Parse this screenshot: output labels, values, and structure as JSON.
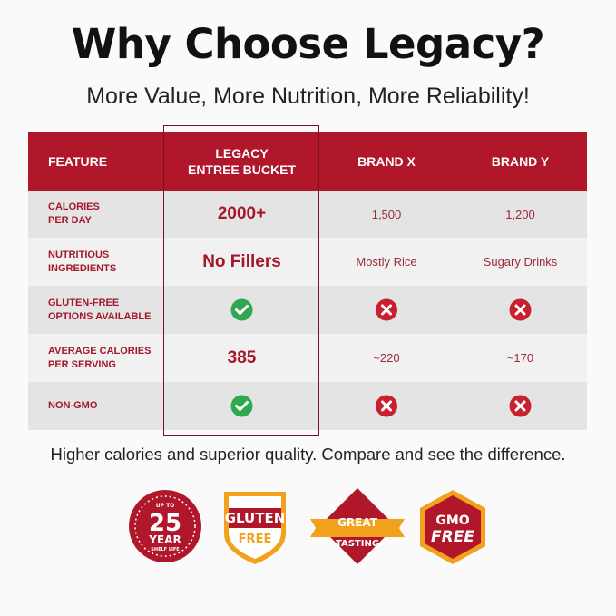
{
  "header": {
    "title": "Why Choose Legacy?",
    "subtitle": "More Value, More Nutrition, More Reliability!"
  },
  "table": {
    "columns": [
      "FEATURE",
      [
        "LEGACY",
        "ENTREE BUCKET"
      ],
      "BRAND X",
      "BRAND Y"
    ],
    "rows": [
      {
        "feature": [
          "CALORIES",
          "PER DAY"
        ],
        "legacy": "2000+",
        "brand_x": "1,500",
        "brand_y": "1,200"
      },
      {
        "feature": [
          "NUTRITIOUS",
          "INGREDIENTS"
        ],
        "legacy": "No Fillers",
        "brand_x": "Mostly Rice",
        "brand_y": "Sugary Drinks"
      },
      {
        "feature": [
          "GLUTEN-FREE",
          "OPTIONS AVAILABLE"
        ]
      },
      {
        "feature": [
          "AVERAGE CALORIES",
          "PER SERVING"
        ],
        "legacy": "385",
        "brand_x": "~220",
        "brand_y": "~170"
      },
      {
        "feature": [
          "NON-GMO"
        ]
      }
    ]
  },
  "footer": "Higher calories and superior quality. Compare and see the difference.",
  "badges": [
    [
      "UP TO",
      "25",
      "YEAR",
      "SHELF LIFE"
    ],
    [
      "GLUTEN",
      "FREE"
    ],
    [
      "GREAT",
      "TASTING"
    ],
    [
      "GMO",
      "FREE"
    ]
  ]
}
